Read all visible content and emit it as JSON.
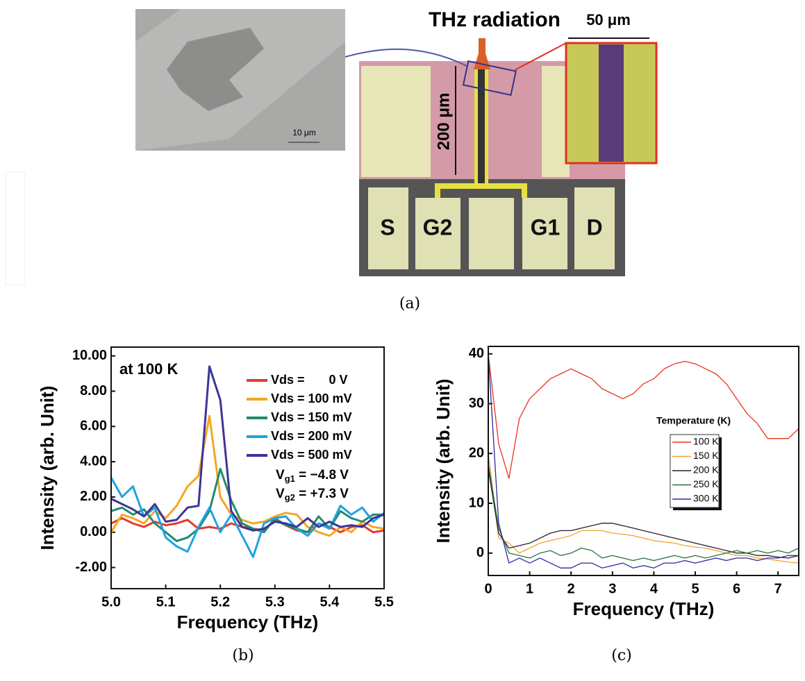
{
  "figure_a": {
    "title": "THz radiation",
    "inset_scale": "50 μm",
    "channel_length": "200 μm",
    "sem_scale": "10 μm",
    "pads": [
      "S",
      "G2",
      "G1",
      "D"
    ]
  },
  "panel_labels": [
    "(a)",
    "(b)",
    "(c)"
  ],
  "chart_data": [
    {
      "type": "line",
      "xlabel": "Frequency (THz)",
      "ylabel": "Intensity (arb. Unit)",
      "annotations": [
        "at 100 K"
      ],
      "gate_voltages": [
        {
          "symbol": "V",
          "subscript": "g1",
          "text": " = −4.8 V"
        },
        {
          "symbol": "V",
          "subscript": "g2",
          "text": " = +7.3 V"
        }
      ],
      "xlim": [
        5.0,
        5.5
      ],
      "ylim": [
        -3.2,
        10.5
      ],
      "xticks": [
        {
          "value": 5,
          "label": "5.0"
        },
        5.1,
        5.2,
        5.3,
        5.4,
        5.5
      ],
      "yticks": [
        {
          "value": -2,
          "label": "-2.00"
        },
        {
          "value": 0,
          "label": "0.00"
        },
        {
          "value": 2,
          "label": "2.00"
        },
        {
          "value": 4,
          "label": "4.00"
        },
        {
          "value": 6,
          "label": "6.00"
        },
        {
          "value": 8,
          "label": "8.00"
        },
        {
          "value": 10,
          "label": "10.00"
        }
      ],
      "x": [
        5.0,
        5.02,
        5.04,
        5.06,
        5.08,
        5.1,
        5.12,
        5.14,
        5.16,
        5.18,
        5.2,
        5.22,
        5.24,
        5.26,
        5.28,
        5.3,
        5.32,
        5.34,
        5.36,
        5.38,
        5.4,
        5.42,
        5.44,
        5.46,
        5.48,
        5.5
      ],
      "series": [
        {
          "name": "Vds =       0 V",
          "color": "#e53a2a",
          "values": [
            0.5,
            0.8,
            0.5,
            0.3,
            0.6,
            0.4,
            0.5,
            0.7,
            0.2,
            0.3,
            0.2,
            0.5,
            0.3,
            0.2,
            0.1,
            0.7,
            0.4,
            0.1,
            0.0,
            0.5,
            0.3,
            0.0,
            0.3,
            0.4,
            0.0,
            0.1
          ]
        },
        {
          "name": "Vds = 100 mV",
          "color": "#f5a623",
          "values": [
            0.0,
            1.0,
            0.8,
            0.5,
            1.2,
            0.8,
            1.5,
            2.6,
            3.2,
            6.6,
            2.0,
            1.0,
            0.7,
            0.5,
            0.6,
            0.9,
            1.1,
            1.0,
            0.3,
            0.0,
            -0.2,
            0.3,
            0.0,
            0.6,
            0.3,
            0.2
          ]
        },
        {
          "name": "Vds = 150 mV",
          "color": "#1f8c6e",
          "values": [
            1.2,
            1.4,
            1.0,
            1.3,
            0.5,
            0.0,
            -0.5,
            -0.3,
            0.2,
            1.2,
            3.6,
            1.8,
            0.5,
            0.2,
            0.0,
            0.8,
            0.4,
            0.2,
            0.0,
            0.9,
            0.2,
            1.2,
            0.8,
            0.6,
            1.0,
            1.0
          ]
        },
        {
          "name": "Vds = 200 mV",
          "color": "#1fa3e0",
          "values": [
            3.1,
            2.0,
            2.6,
            0.9,
            1.4,
            -0.3,
            -0.8,
            -1.1,
            0.3,
            1.4,
            0.0,
            1.0,
            -0.2,
            -1.4,
            0.5,
            0.8,
            0.9,
            0.2,
            -0.2,
            0.5,
            0.2,
            1.5,
            1.0,
            1.4,
            0.6,
            1.1
          ]
        },
        {
          "name": "Vds = 500 mV",
          "color": "#3b3596",
          "values": [
            1.9,
            1.6,
            1.3,
            0.9,
            1.6,
            0.6,
            0.7,
            1.4,
            1.5,
            9.4,
            7.5,
            1.2,
            0.3,
            0.1,
            0.2,
            0.6,
            0.5,
            0.3,
            0.8,
            0.3,
            0.6,
            0.3,
            0.4,
            0.3,
            0.8,
            1.0
          ]
        }
      ]
    },
    {
      "type": "line",
      "xlabel": "Frequency (THz)",
      "ylabel": "Intensity (arb. Unit)",
      "legend_title": "Temperature (K)",
      "xlim": [
        0,
        7.5
      ],
      "ylim": [
        -4.5,
        41.5
      ],
      "xticks": [
        0,
        1,
        2,
        3,
        4,
        5,
        6,
        7
      ],
      "yticks": [
        0,
        10,
        20,
        30,
        40
      ],
      "x": [
        0,
        0.25,
        0.5,
        0.75,
        1,
        1.25,
        1.5,
        1.75,
        2,
        2.25,
        2.5,
        2.75,
        3,
        3.25,
        3.5,
        3.75,
        4,
        4.25,
        4.5,
        4.75,
        5,
        5.25,
        5.5,
        5.75,
        6,
        6.25,
        6.5,
        6.75,
        7,
        7.25,
        7.5
      ],
      "series": [
        {
          "name": "100 K",
          "color": "#e8331c",
          "values": [
            40,
            22,
            15,
            27,
            31,
            33,
            35,
            36,
            37,
            36,
            35,
            33,
            32,
            31,
            32,
            34,
            35,
            37,
            38,
            38.5,
            38,
            37,
            36,
            34,
            31,
            28,
            26,
            23,
            23,
            23,
            25
          ]
        },
        {
          "name": "150 K",
          "color": "#f5a030",
          "values": [
            20,
            3,
            2,
            0,
            1,
            2,
            2.5,
            3,
            3.5,
            4.5,
            4.5,
            4.5,
            4,
            3.8,
            3.5,
            3,
            2.5,
            2.2,
            2,
            1.5,
            1.2,
            1,
            0.5,
            0,
            -0.5,
            -0.5,
            -1,
            -1.2,
            -1.5,
            -1.8,
            -2
          ]
        },
        {
          "name": "200 K",
          "color": "#222222",
          "values": [
            17,
            4,
            1,
            1.5,
            2,
            3,
            4,
            4.5,
            4.5,
            5,
            5.5,
            6,
            6,
            5.5,
            5,
            4.5,
            4,
            3.5,
            3,
            2.5,
            2,
            1.5,
            1,
            0.5,
            0,
            0,
            -0.5,
            -0.5,
            -0.8,
            -1,
            -0.5
          ]
        },
        {
          "name": "250 K",
          "color": "#2d6e3a",
          "values": [
            18,
            5,
            0,
            -0.5,
            -1,
            0,
            0.5,
            -0.5,
            0,
            1,
            0.5,
            -1,
            -0.5,
            -1,
            -1.5,
            -1,
            -1.5,
            -1,
            -0.5,
            -1,
            -0.5,
            -1,
            -0.5,
            0,
            0.5,
            0,
            0.5,
            0,
            0.5,
            0,
            1
          ]
        },
        {
          "name": "300 K",
          "color": "#2a2aa0",
          "values": [
            40,
            6,
            -2,
            -1,
            -2,
            -1,
            -2,
            -3,
            -3,
            -2,
            -2,
            -3,
            -2.5,
            -2,
            -3,
            -2.5,
            -3,
            -2,
            -2,
            -1.5,
            -2,
            -1.5,
            -1,
            -1.5,
            -1,
            -1,
            -1.5,
            -1,
            -1,
            -0.5,
            -0.5
          ]
        }
      ]
    }
  ]
}
